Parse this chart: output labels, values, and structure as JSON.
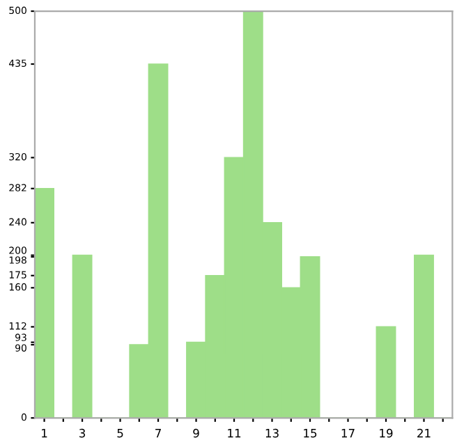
{
  "chart_data": {
    "type": "bar",
    "categories": [
      "1",
      null,
      "3",
      null,
      "5",
      null,
      "7",
      null,
      "9",
      null,
      "11",
      null,
      "13",
      null,
      "15",
      null,
      "17",
      null,
      "19",
      null,
      "21",
      null
    ],
    "values": [
      282,
      0,
      200,
      0,
      0,
      90,
      435,
      0,
      93,
      175,
      320,
      500,
      240,
      160,
      198,
      0,
      0,
      0,
      112,
      0,
      200,
      0
    ],
    "color": "#9ede88",
    "ylim": [
      0,
      500
    ],
    "yticks": [
      0,
      90,
      93,
      112,
      160,
      175,
      198,
      200,
      240,
      282,
      320,
      435,
      500
    ],
    "grid": false
  }
}
